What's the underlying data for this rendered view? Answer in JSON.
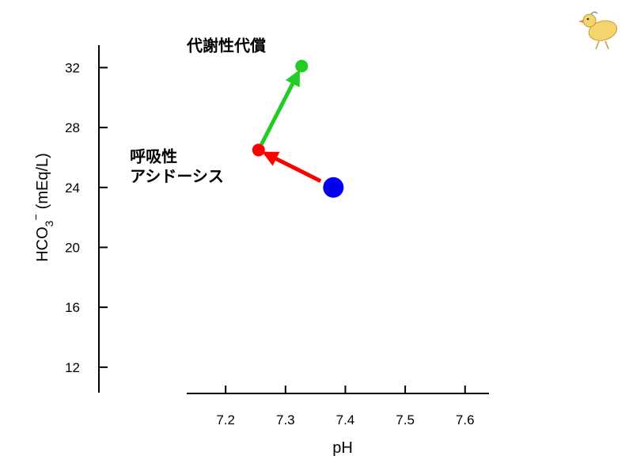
{
  "chart_data": {
    "type": "scatter",
    "xlabel": "pH",
    "ylabel": "HCO",
    "ylabel_sub": "3",
    "ylabel_sup": "−",
    "ylabel_unit": "(mEq/L)",
    "x_ticks": [
      7.2,
      7.3,
      7.4,
      7.5,
      7.6
    ],
    "y_ticks": [
      12,
      16,
      20,
      24,
      28,
      32
    ],
    "xlim": [
      7.135,
      7.64
    ],
    "ylim": [
      10.3,
      33.5
    ],
    "grid": false,
    "points": [
      {
        "x": 7.38,
        "y": 24.0,
        "color": "#0000ee",
        "size": "large"
      },
      {
        "x": 7.255,
        "y": 26.5,
        "color": "#ff0000",
        "size": "small"
      },
      {
        "x": 7.327,
        "y": 32.1,
        "color": "#22cc22",
        "size": "small"
      }
    ],
    "arrows": [
      {
        "from": [
          7.38,
          24.0
        ],
        "to": [
          7.255,
          26.5
        ],
        "color": "#ff0000"
      },
      {
        "from": [
          7.255,
          26.5
        ],
        "to": [
          7.327,
          32.1
        ],
        "color": "#22cc22"
      }
    ],
    "annotations": [
      {
        "lines": [
          "代謝性代償"
        ],
        "anchor_x": 7.135,
        "anchor_y": 33.1
      },
      {
        "lines": [
          "呼吸性",
          "アシドーシス"
        ],
        "anchor_x": 7.04,
        "anchor_y": 25.7
      }
    ]
  },
  "decor": {
    "chick_icon": "chick-icon",
    "chick_body_color": "#f3d56b"
  }
}
